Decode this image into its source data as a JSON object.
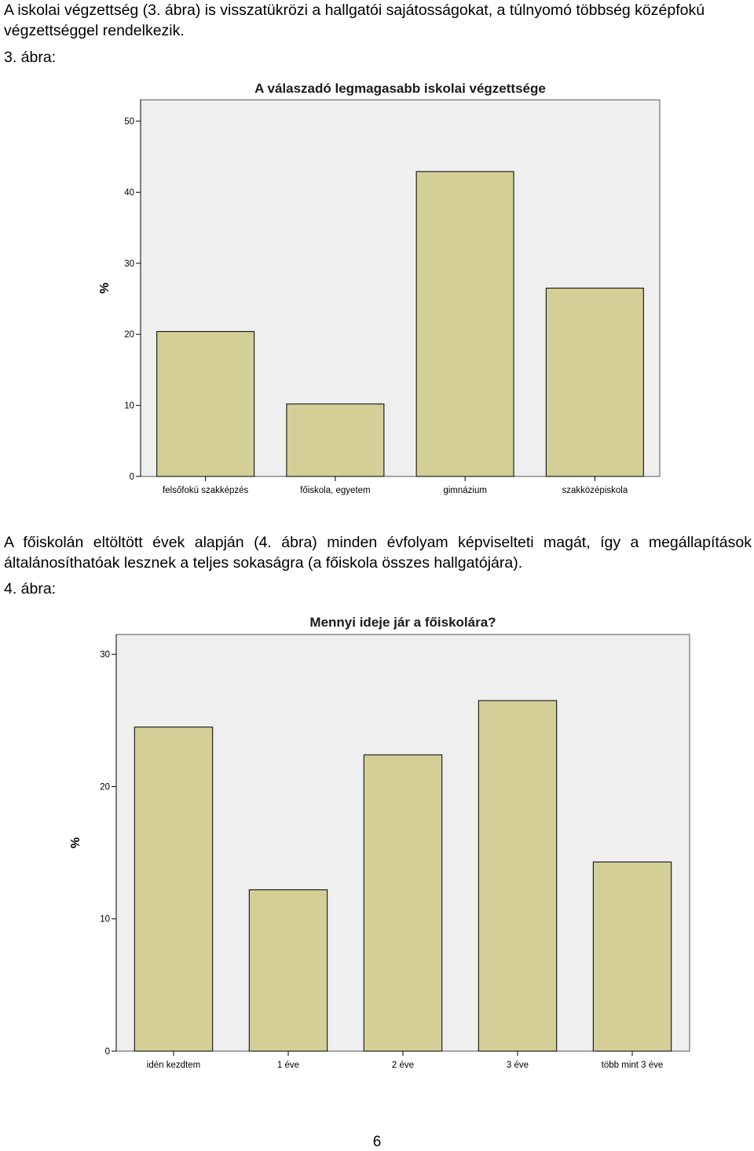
{
  "paragraph1": "A iskolai végzettség (3. ábra) is visszatükrözi a hallgatói sajátosságokat, a túlnyomó többség középfokú végzettséggel rendelkezik.",
  "figure1_caption": "3. ábra:",
  "paragraph2": "A főiskolán eltöltött évek alapján (4. ábra) minden évfolyam képviselteti magát, így a megállapítások általánosíthatóak lesznek a teljes sokaságra (a főiskola összes hallgatójára).",
  "figure2_caption": "4. ábra:",
  "page_number": "6",
  "colors": {
    "bar_fill": "#d4cf96",
    "plot_background": "#efefef"
  },
  "chart_data": [
    {
      "type": "bar",
      "title": "A válaszadó legmagasabb iskolai végzettsége",
      "xlabel": "",
      "ylabel": "%",
      "categories": [
        "felsőfokú szakképzés",
        "főiskola, egyetem",
        "gimnázium",
        "szakközépiskola"
      ],
      "values": [
        20.4,
        10.2,
        42.9,
        26.5
      ],
      "ylim": [
        0,
        53
      ],
      "yticks": [
        0,
        10,
        20,
        30,
        40,
        50
      ],
      "grid": false
    },
    {
      "type": "bar",
      "title": "Mennyi ideje jár a főiskolára?",
      "xlabel": "",
      "ylabel": "%",
      "categories": [
        "idén kezdtem",
        "1 éve",
        "2 éve",
        "3 éve",
        "több mint 3 éve"
      ],
      "values": [
        24.5,
        12.2,
        22.4,
        26.5,
        14.3
      ],
      "ylim": [
        0,
        31.5
      ],
      "yticks": [
        0,
        10,
        20,
        30
      ],
      "grid": false
    }
  ]
}
